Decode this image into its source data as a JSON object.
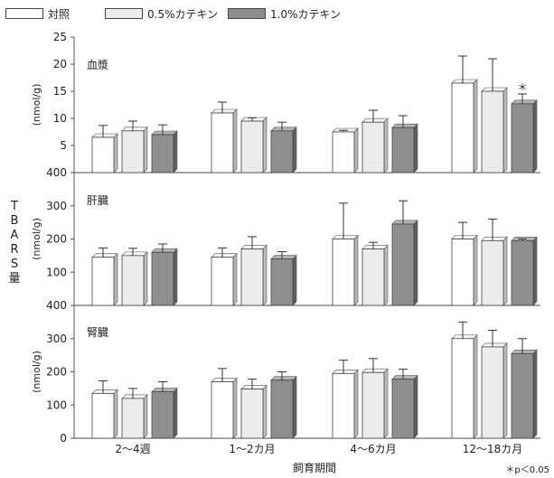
{
  "legend": [
    {
      "label": "対照",
      "color": "#ffffff"
    },
    {
      "label": "0.5%カテキン",
      "color": "#ececec"
    },
    {
      "label": "1.0%カテキン",
      "color": "#8e8e8e"
    }
  ],
  "y_axis_title": "TBARS量",
  "x_axis_title": "飼育期間",
  "footnote": "＊p＜0.05",
  "chart_data": {
    "type": "bar",
    "categories": [
      "2～4週",
      "1～2カ月",
      "4～6カ月",
      "12～18カ月"
    ],
    "series_names": [
      "対照",
      "0.5%カテキン",
      "1.0%カテキン"
    ],
    "panels": [
      {
        "label": "血漿",
        "ylabel": "(nmol/g)",
        "ylim": [
          0,
          25
        ],
        "ticks": [
          "400",
          "5",
          "10",
          "15",
          "20",
          "25"
        ],
        "series": [
          {
            "values": [
              6.5,
              11.0,
              7.5,
              16.5
            ],
            "errors": [
              2.2,
              2.0,
              0.3,
              5.0
            ]
          },
          {
            "values": [
              7.7,
              9.5,
              9.3,
              15.0
            ],
            "errors": [
              1.8,
              0.6,
              2.2,
              6.0
            ]
          },
          {
            "values": [
              7.0,
              7.7,
              8.3,
              12.7
            ],
            "errors": [
              1.8,
              1.6,
              2.2,
              1.8
            ]
          }
        ],
        "annotations": [
          {
            "category_index": 3,
            "series_index": 2,
            "text": "＊"
          }
        ]
      },
      {
        "label": "肝臓",
        "ylabel": "(nmol/g)",
        "ylim": [
          0,
          400
        ],
        "ticks": [
          "400",
          "100",
          "200",
          "300"
        ],
        "series": [
          {
            "values": [
              145,
              145,
              200,
              200
            ],
            "errors": [
              28,
              28,
              108,
              50
            ]
          },
          {
            "values": [
              150,
              170,
              170,
              195
            ],
            "errors": [
              22,
              37,
              20,
              65
            ]
          },
          {
            "values": [
              160,
              140,
              245,
              195
            ],
            "errors": [
              25,
              22,
              70,
              5
            ]
          }
        ],
        "annotations": []
      },
      {
        "label": "腎臓",
        "ylabel": "(nmol/g)",
        "ylim": [
          0,
          400
        ],
        "ticks": [
          "0",
          "100",
          "200",
          "300"
        ],
        "series": [
          {
            "values": [
              135,
              170,
              195,
              300
            ],
            "errors": [
              38,
              40,
              40,
              50
            ]
          },
          {
            "values": [
              120,
              148,
              198,
              275
            ],
            "errors": [
              30,
              30,
              42,
              50
            ]
          },
          {
            "values": [
              140,
              175,
              178,
              255
            ],
            "errors": [
              30,
              25,
              30,
              45
            ]
          }
        ],
        "annotations": []
      }
    ]
  }
}
